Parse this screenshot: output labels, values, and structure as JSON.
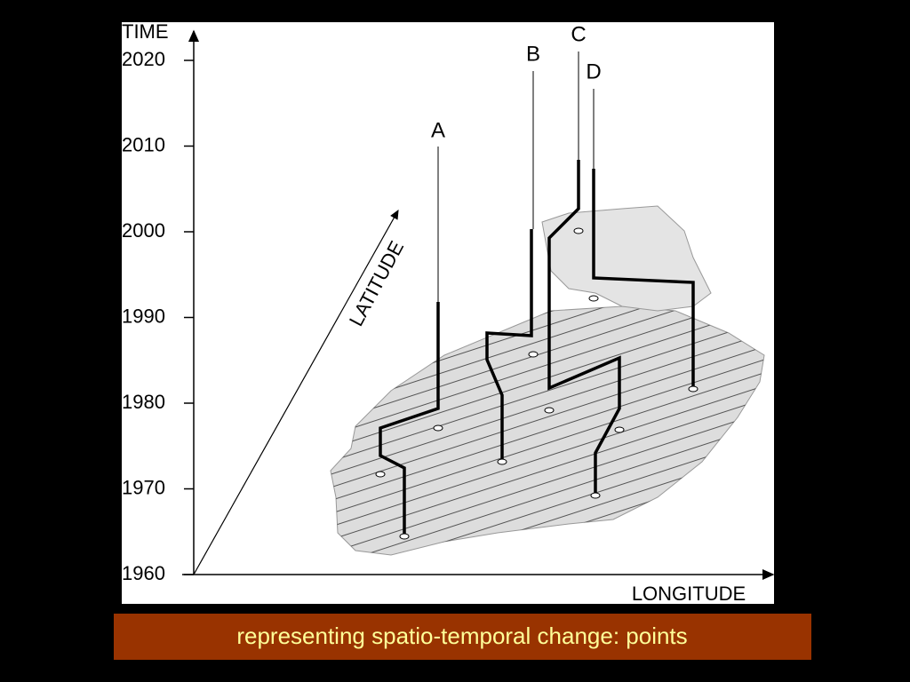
{
  "diagram": {
    "time_axis": {
      "label": "TIME",
      "ticks": [
        2020,
        2010,
        2000,
        1990,
        1980,
        1970,
        1960
      ]
    },
    "latitude_label": "LATITUDE",
    "longitude_label": "LONGITUDE",
    "paths": [
      {
        "label": "A"
      },
      {
        "label": "B"
      },
      {
        "label": "C"
      },
      {
        "label": "D"
      }
    ]
  },
  "caption": "representing spatio-temporal change:  points"
}
